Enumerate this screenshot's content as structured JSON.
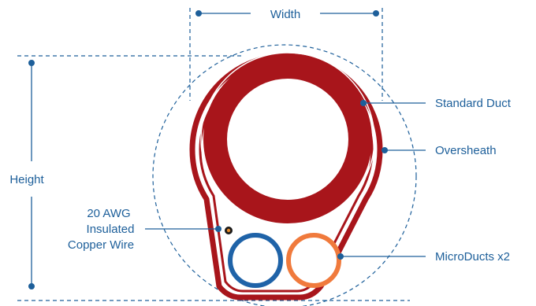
{
  "labels": {
    "width": "Width",
    "height": "Height",
    "standard_duct": "Standard Duct",
    "oversheath": "Oversheath",
    "microducts": "MicroDucts x2",
    "wire_line1": "20 AWG",
    "wire_line2": "Insulated",
    "wire_line3": "Copper Wire"
  },
  "colors": {
    "sheath_red": "#a8151b",
    "standard_duct_red": "#a8151b",
    "microduct_blue": "#1f63a8",
    "microduct_orange": "#f07a3c",
    "annotation_blue": "#1d5f9a",
    "wire_core": "#e58a2a"
  }
}
